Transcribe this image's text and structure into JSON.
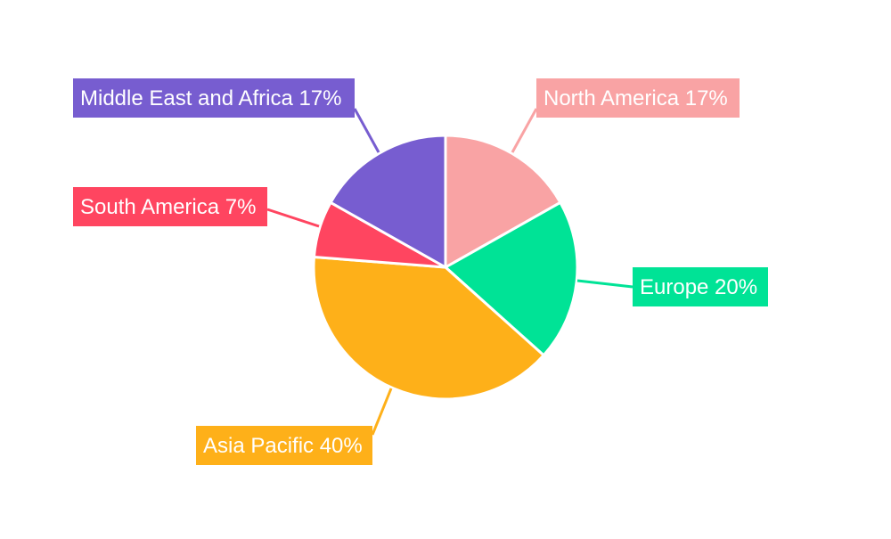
{
  "chart_data": {
    "type": "pie",
    "title": "",
    "categories": [
      "North America",
      "Europe",
      "Asia Pacific",
      "South America",
      "Middle East and Africa"
    ],
    "values": [
      17,
      20,
      40,
      7,
      17
    ],
    "labels": [
      "North America 17%",
      "Europe 20%",
      "Asia Pacific 40%",
      "South America 7%",
      "Middle East and Africa 17%"
    ],
    "colors": [
      "#F9A3A4",
      "#00E396",
      "#FEB019",
      "#FF4560",
      "#775DD0"
    ],
    "start_angle": "top",
    "direction": "clockwise",
    "legend": "none"
  }
}
